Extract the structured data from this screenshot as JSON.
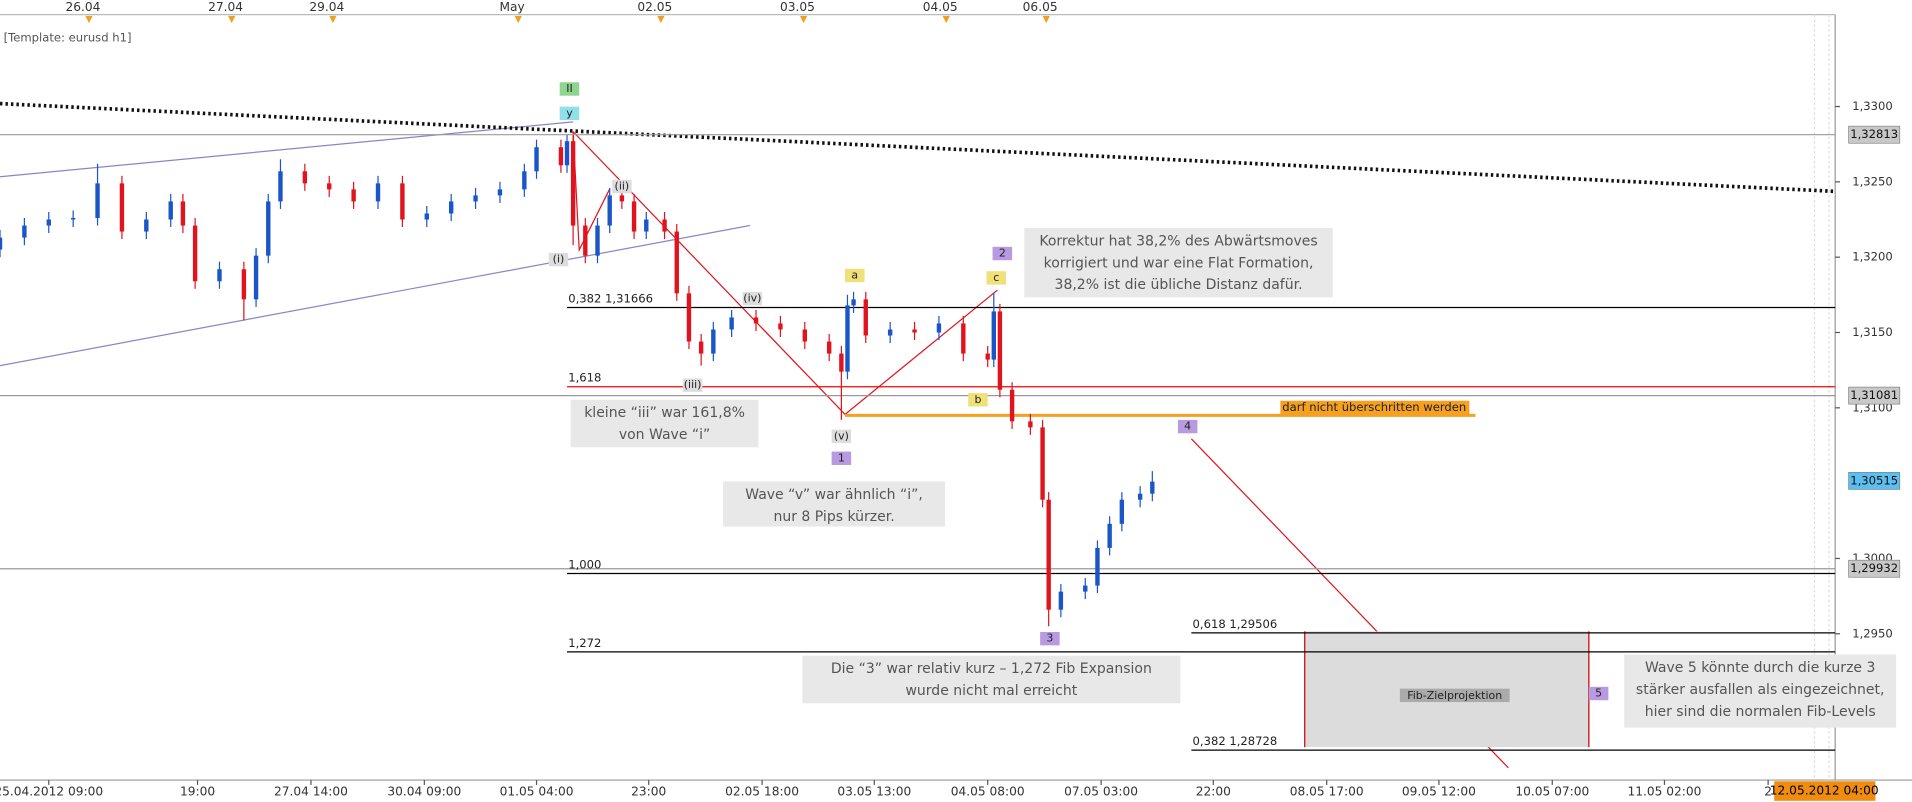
{
  "chart_data": {
    "type": "candlestick",
    "template_label": "[Template: eurusd h1]",
    "series": [
      {
        "up_color": "#1a56c8",
        "down_color": "#e0141e",
        "x": [
          0,
          4,
          8,
          12,
          16,
          20,
          24,
          28,
          30,
          32,
          36,
          40,
          42,
          44,
          46,
          50,
          54,
          58,
          62,
          66,
          70,
          74,
          78,
          82,
          86,
          88,
          92,
          93,
          94,
          96,
          98,
          100,
          102,
          104,
          106,
          109,
          111,
          113,
          115,
          117,
          120,
          124,
          128,
          132,
          136,
          138,
          139,
          140,
          142,
          146,
          150,
          154,
          158,
          162,
          163,
          164,
          166,
          169,
          171,
          172,
          174,
          178,
          180,
          182,
          184,
          187,
          189
        ],
        "open": [
          1.3205,
          1.3213,
          1.3221,
          1.3225,
          1.3226,
          1.3249,
          1.3217,
          1.3225,
          1.3237,
          1.3221,
          1.3184,
          1.3192,
          1.3172,
          1.3201,
          1.3237,
          1.3257,
          1.3249,
          1.3245,
          1.3237,
          1.3249,
          1.3225,
          1.3229,
          1.3237,
          1.3241,
          1.3245,
          1.3257,
          1.3273,
          1.3261,
          1.3277,
          1.3221,
          1.3201,
          1.3221,
          1.3241,
          1.3237,
          1.3217,
          1.3225,
          1.3217,
          1.3176,
          1.3144,
          1.3136,
          1.3152,
          1.316,
          1.3156,
          1.3152,
          1.3144,
          1.3136,
          1.3124,
          1.3168,
          1.3172,
          1.3148,
          1.3152,
          1.315,
          1.3156,
          1.3136,
          1.3132,
          1.3164,
          1.3112,
          1.3091,
          1.3087,
          1.3039,
          1.2966,
          1.2978,
          1.2982,
          1.3007,
          1.3023,
          1.3039,
          1.3043
        ],
        "high": [
          1.3218,
          1.3226,
          1.323,
          1.3231,
          1.3262,
          1.3254,
          1.323,
          1.3242,
          1.3242,
          1.3226,
          1.3197,
          1.3197,
          1.3206,
          1.3242,
          1.3265,
          1.3262,
          1.3254,
          1.325,
          1.3254,
          1.3254,
          1.3234,
          1.3242,
          1.3246,
          1.325,
          1.3262,
          1.3278,
          1.3278,
          1.3281,
          1.3281,
          1.3226,
          1.3226,
          1.3246,
          1.3246,
          1.3242,
          1.323,
          1.323,
          1.3222,
          1.3181,
          1.3149,
          1.3157,
          1.3165,
          1.3165,
          1.3161,
          1.3157,
          1.3149,
          1.3141,
          1.3175,
          1.3177,
          1.3177,
          1.3157,
          1.3157,
          1.3161,
          1.3161,
          1.3141,
          1.3176,
          1.3169,
          1.3117,
          1.3096,
          1.3092,
          1.3044,
          1.2983,
          1.2987,
          1.3012,
          1.3028,
          1.3044,
          1.3048,
          1.3058
        ],
        "low": [
          1.32,
          1.3208,
          1.3216,
          1.322,
          1.3221,
          1.3212,
          1.3212,
          1.322,
          1.3216,
          1.3179,
          1.3179,
          1.3158,
          1.3167,
          1.3196,
          1.3232,
          1.3244,
          1.324,
          1.3232,
          1.3232,
          1.322,
          1.322,
          1.3224,
          1.3232,
          1.3236,
          1.324,
          1.3252,
          1.3256,
          1.3256,
          1.3208,
          1.3196,
          1.3196,
          1.3216,
          1.3232,
          1.3212,
          1.3212,
          1.3212,
          1.3171,
          1.3139,
          1.3128,
          1.3131,
          1.3147,
          1.3151,
          1.3147,
          1.3139,
          1.3131,
          1.3092,
          1.3119,
          1.3163,
          1.3143,
          1.3143,
          1.3145,
          1.3145,
          1.3131,
          1.3127,
          1.3127,
          1.3107,
          1.3086,
          1.3082,
          1.3034,
          1.2955,
          1.2961,
          1.2973,
          1.2977,
          1.3002,
          1.3018,
          1.3034,
          1.3038
        ],
        "close": [
          1.3213,
          1.3221,
          1.3225,
          1.3226,
          1.3249,
          1.3217,
          1.3225,
          1.3237,
          1.3221,
          1.3184,
          1.3192,
          1.3172,
          1.3201,
          1.3237,
          1.3257,
          1.3249,
          1.3245,
          1.3237,
          1.3249,
          1.3225,
          1.3229,
          1.3237,
          1.3241,
          1.3245,
          1.3257,
          1.3273,
          1.3261,
          1.3277,
          1.3221,
          1.3201,
          1.3221,
          1.3241,
          1.3237,
          1.3217,
          1.3225,
          1.3217,
          1.3176,
          1.3144,
          1.3136,
          1.3152,
          1.316,
          1.3156,
          1.3152,
          1.3144,
          1.3136,
          1.3124,
          1.3168,
          1.3172,
          1.3148,
          1.3152,
          1.315,
          1.3156,
          1.3136,
          1.3132,
          1.3164,
          1.3112,
          1.3091,
          1.3087,
          1.3039,
          1.2966,
          1.2978,
          1.2982,
          1.3007,
          1.3023,
          1.3039,
          1.3043,
          1.3051
        ]
      }
    ],
    "xlim": [
      0,
      301
    ],
    "ylim": [
      1.2861,
      1.3361
    ],
    "yticks": [
      {
        "value": 1.295,
        "label": "1,2950"
      },
      {
        "value": 1.3,
        "label": "1,3000"
      },
      {
        "value": 1.31,
        "label": "1,3100"
      },
      {
        "value": 1.315,
        "label": "1,3150"
      },
      {
        "value": 1.32,
        "label": "1,3200"
      },
      {
        "value": 1.325,
        "label": "1,3250"
      },
      {
        "value": 1.33,
        "label": "1,3300"
      }
    ],
    "xticks": [
      {
        "value": 8,
        "label": "25.04.2012 09:00"
      },
      {
        "value": 32.4,
        "label": "19:00"
      },
      {
        "value": 51,
        "label": "27.04 14:00"
      },
      {
        "value": 69.6,
        "label": "30.04 09:00"
      },
      {
        "value": 88,
        "label": "01.05 04:00"
      },
      {
        "value": 106.4,
        "label": "23:00"
      },
      {
        "value": 125,
        "label": "02.05 18:00"
      },
      {
        "value": 143.4,
        "label": "03.05 13:00"
      },
      {
        "value": 162,
        "label": "04.05 08:00"
      },
      {
        "value": 180.6,
        "label": "07.05 03:00"
      },
      {
        "value": 199,
        "label": "22:00"
      },
      {
        "value": 217.6,
        "label": "08.05 17:00"
      },
      {
        "value": 236,
        "label": "09.05 12:00"
      },
      {
        "value": 254.6,
        "label": "10.05 07:00"
      },
      {
        "value": 273,
        "label": "11.05 02:00"
      },
      {
        "value": 290,
        "label": "2"
      }
    ],
    "top_xticks": [
      {
        "value": 13.6,
        "label": "26.04"
      },
      {
        "value": 37,
        "label": "27.04"
      },
      {
        "value": 53.6,
        "label": "29.04"
      },
      {
        "value": 84,
        "label": "May"
      },
      {
        "value": 107.4,
        "label": "02.05"
      },
      {
        "value": 130.8,
        "label": "03.05"
      },
      {
        "value": 154.2,
        "label": "04.05"
      },
      {
        "value": 170.6,
        "label": "06.05"
      }
    ],
    "cursor_time": "12.05.2012 04:00",
    "price_tags": [
      {
        "value": 1.32813,
        "label": "1,32813",
        "color": "#c8c8c8"
      },
      {
        "value": 1.31081,
        "label": "1,31081",
        "color": "#c8c8c8"
      },
      {
        "value": 1.30515,
        "label": "1,30515",
        "color": "#5bc0f0"
      },
      {
        "value": 1.29932,
        "label": "1,29932",
        "color": "#c8c8c8"
      }
    ],
    "wave_fib_levels": [
      {
        "value": 1.31666,
        "label": "0,382 1,31666",
        "color": "#000000"
      },
      {
        "value": 1.3114,
        "label": "1,618",
        "color": "#ff0000"
      },
      {
        "value": 1.299,
        "label": "1,000",
        "color": "#000000"
      },
      {
        "value": 1.2938,
        "label": "1,272",
        "color": "#000000"
      }
    ],
    "target_fib_levels": [
      {
        "value": 1.29506,
        "label": "0,618 1,29506",
        "color": "#000000"
      },
      {
        "value": 1.28728,
        "label": "0,382 1,28728",
        "color": "#000000"
      }
    ],
    "limit_line": {
      "value": 1.3095,
      "label": "darf nicht überschritten werden",
      "color": "#f5a020"
    },
    "wave_labels": [
      "II",
      "y",
      "(ii)",
      "(i)",
      "(iv)",
      "(iii)",
      "(v)",
      "1",
      "a",
      "c",
      "2",
      "b",
      "3",
      "4",
      "5"
    ],
    "target_zone_label": "Fib-Zielprojektion",
    "notes": [
      [
        "Korrektur hat 38,2% des Abwärtsmoves",
        "korrigiert und war eine Flat Formation,",
        "38,2% ist die übliche Distanz dafür."
      ],
      [
        "kleine “iii” war 161,8%",
        "von Wave “i”"
      ],
      [
        "Wave “v” war ähnlich “i”,",
        "nur 8 Pips kürzer."
      ],
      [
        "Die “3” war relativ kurz – 1,272 Fib Expansion",
        "wurde nicht mal erreicht"
      ],
      [
        "Wave 5 könnte durch die kurze 3",
        "stärker ausfallen als eingezeichnet,",
        "hier sind die normalen Fib-Levels"
      ]
    ]
  }
}
